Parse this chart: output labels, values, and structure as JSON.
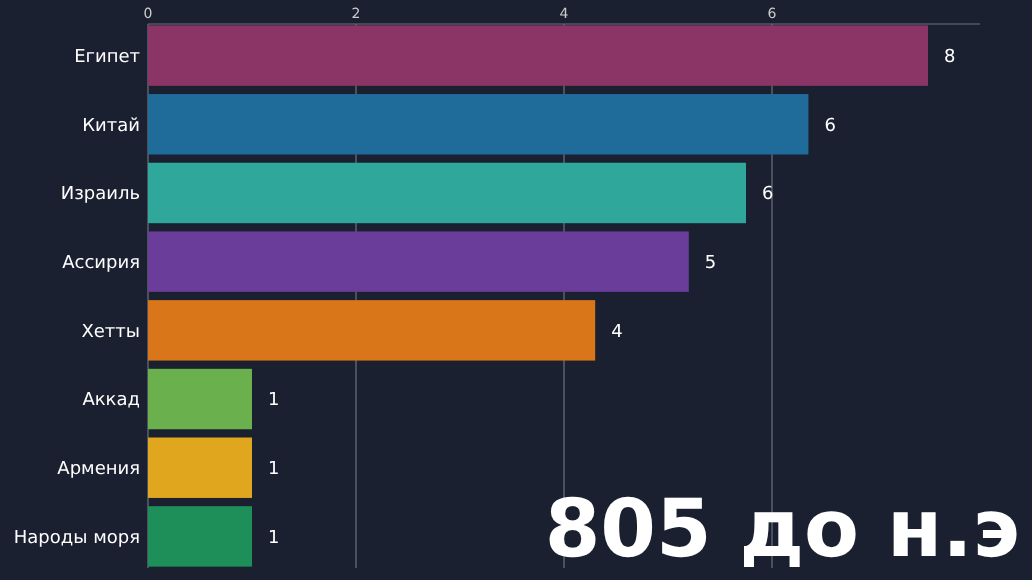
{
  "chart_data": {
    "type": "bar",
    "orientation": "horizontal",
    "categories": [
      "Египет",
      "Китай",
      "Израиль",
      "Ассирия",
      "Хетты",
      "Аккад",
      "Армения",
      "Народы моря"
    ],
    "values": [
      7.5,
      6.35,
      5.75,
      5.2,
      4.3,
      1,
      1,
      1
    ],
    "colors": [
      "#8a3566",
      "#1f6b99",
      "#2fa89b",
      "#6a3d9a",
      "#d9761a",
      "#6ab04c",
      "#e0a61e",
      "#1f8f5a"
    ],
    "value_labels": [
      "8",
      "6",
      "6",
      "5",
      "4",
      "1",
      "1",
      "1"
    ],
    "xlim": [
      0,
      8
    ],
    "xticks": [
      0,
      2,
      4,
      6
    ],
    "grid": "x",
    "annotations": [
      "805 до н.э"
    ]
  }
}
